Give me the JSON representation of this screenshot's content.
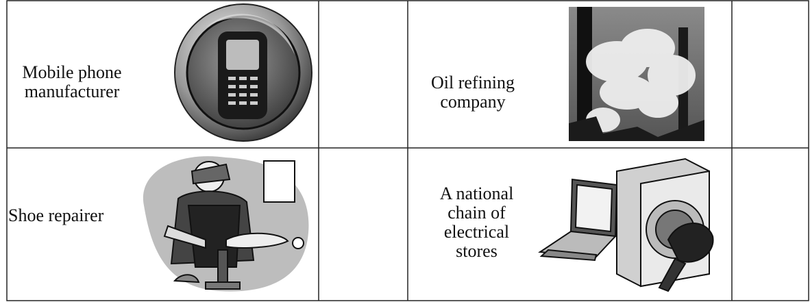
{
  "table": {
    "rows": [
      [
        "Mobile phone manufacturer",
        "Oil refining company"
      ],
      [
        "Shoe repairer",
        "A national chain of electrical stores"
      ]
    ]
  }
}
